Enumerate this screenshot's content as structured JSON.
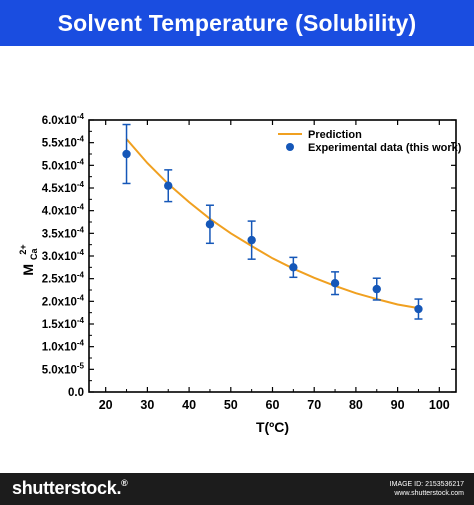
{
  "header": {
    "title": "Solvent Temperature (Solubility)",
    "background": "#1a4de0"
  },
  "chart_data": {
    "type": "scatter",
    "title": "",
    "xlabel": "T(ºC)",
    "ylabel": {
      "base": "M",
      "subscript": "Ca",
      "superscript": "2+"
    },
    "xlim": [
      16,
      104
    ],
    "ylim": [
      0,
      0.0006
    ],
    "x_ticks": [
      20,
      30,
      40,
      50,
      60,
      70,
      80,
      90,
      100
    ],
    "x_tick_labels": [
      "20",
      "30",
      "40",
      "50",
      "60",
      "70",
      "80",
      "90",
      "100"
    ],
    "y_ticks": [
      0,
      5e-05,
      0.0001,
      0.00015,
      0.0002,
      0.00025,
      0.0003,
      0.00035,
      0.0004,
      0.00045,
      0.0005,
      0.00055,
      0.0006
    ],
    "y_tick_labels": [
      {
        "mant": "0.0",
        "exp": ""
      },
      {
        "mant": "5.0x10",
        "exp": "-5"
      },
      {
        "mant": "1.0x10",
        "exp": "-4"
      },
      {
        "mant": "1.5x10",
        "exp": "-4"
      },
      {
        "mant": "2.0x10",
        "exp": "-4"
      },
      {
        "mant": "2.5x10",
        "exp": "-4"
      },
      {
        "mant": "3.0x10",
        "exp": "-4"
      },
      {
        "mant": "3.5x10",
        "exp": "-4"
      },
      {
        "mant": "4.0x10",
        "exp": "-4"
      },
      {
        "mant": "4.5x10",
        "exp": "-4"
      },
      {
        "mant": "5.0x10",
        "exp": "-4"
      },
      {
        "mant": "5.5x10",
        "exp": "-4"
      },
      {
        "mant": "6.0x10",
        "exp": "-4"
      }
    ],
    "grid": false,
    "legend_position": "top-right",
    "series": [
      {
        "name": "Prediction",
        "kind": "line",
        "color": "#f0a020",
        "x": [
          25,
          30,
          35,
          40,
          45,
          50,
          55,
          60,
          65,
          70,
          75,
          80,
          85,
          90,
          95
        ],
        "y": [
          0.000558,
          0.000505,
          0.000459,
          0.000419,
          0.000382,
          0.00035,
          0.000322,
          0.000295,
          0.000272,
          0.000252,
          0.000234,
          0.000218,
          0.000205,
          0.000193,
          0.000185
        ]
      },
      {
        "name": "Experimental data (this work)",
        "kind": "scatter",
        "color": "#1557b8",
        "x": [
          25,
          35,
          45,
          55,
          65,
          75,
          85,
          95
        ],
        "y": [
          0.000525,
          0.000455,
          0.00037,
          0.000335,
          0.000275,
          0.00024,
          0.000227,
          0.000183
        ],
        "error": [
          6.5e-05,
          3.5e-05,
          4.2e-05,
          4.2e-05,
          2.2e-05,
          2.5e-05,
          2.4e-05,
          2.2e-05
        ]
      }
    ]
  },
  "footer": {
    "logo": "shutterstock",
    "logo_mark": ".",
    "trademark": "®",
    "meta_label_1": "IMAGE ID: 2153536217",
    "meta_label_2": "www.shutterstock.com"
  }
}
